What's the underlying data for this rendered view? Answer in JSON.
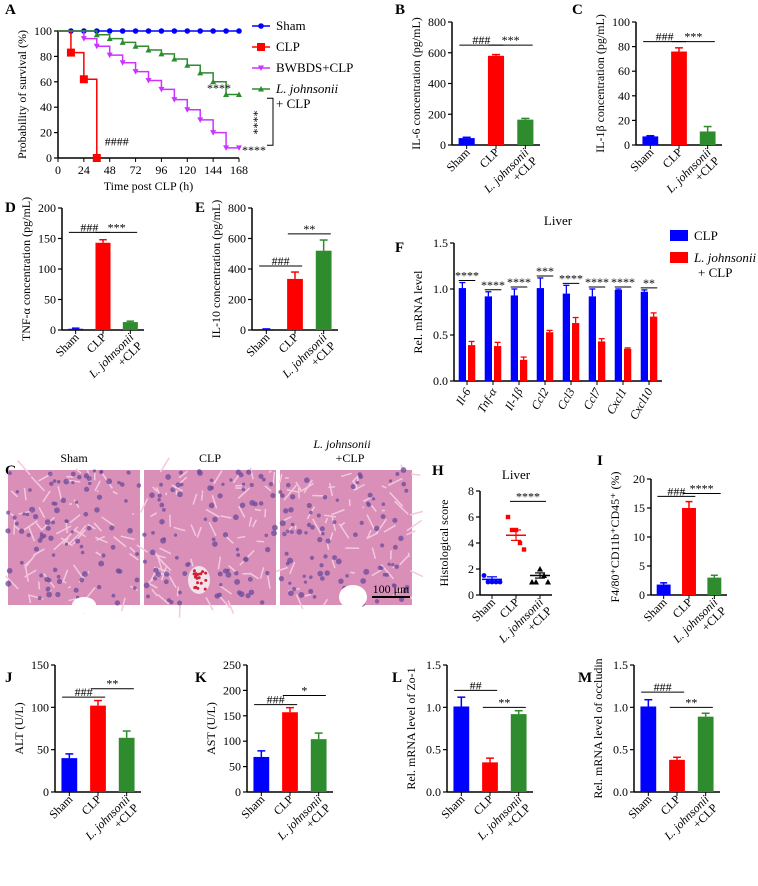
{
  "colors": {
    "sham": "#0000ff",
    "clp": "#ff0000",
    "bwbds": "#cc33ff",
    "lj": "#2e8b2e",
    "f_clp": "#0000ff",
    "f_lj": "#ff0000"
  },
  "chart_data": [
    {
      "id": "A",
      "type": "line",
      "title": "",
      "xlabel": "Time post CLP (h)",
      "ylabel": "Probability of survival (%)",
      "xlim": [
        0,
        168
      ],
      "ylim": [
        0,
        100
      ],
      "xticks": [
        0,
        24,
        48,
        72,
        96,
        120,
        144,
        168
      ],
      "yticks": [
        0,
        20,
        40,
        60,
        80,
        100
      ],
      "series": [
        {
          "name": "Sham",
          "italic": "",
          "color_key": "sham",
          "marker": "circle",
          "x": [
            0,
            12,
            24,
            36,
            48,
            60,
            72,
            84,
            96,
            108,
            120,
            132,
            144,
            156,
            168
          ],
          "y": [
            100,
            100,
            100,
            100,
            100,
            100,
            100,
            100,
            100,
            100,
            100,
            100,
            100,
            100,
            100
          ]
        },
        {
          "name": "CLP",
          "italic": "",
          "color_key": "clp",
          "marker": "square",
          "x": [
            0,
            12,
            24,
            36
          ],
          "y": [
            100,
            83,
            62,
            0
          ]
        },
        {
          "name": "BWBDS+CLP",
          "italic": "",
          "color_key": "bwbds",
          "marker": "tri-down",
          "x": [
            0,
            24,
            36,
            48,
            60,
            72,
            84,
            96,
            108,
            120,
            132,
            144,
            156,
            168
          ],
          "y": [
            100,
            94,
            88,
            81,
            75,
            68,
            61,
            54,
            46,
            38,
            30,
            20,
            8,
            8
          ]
        },
        {
          "name": "+ CLP",
          "italic": "L. johnsonii",
          "color_key": "lj",
          "marker": "tri-up",
          "x": [
            0,
            36,
            48,
            60,
            72,
            84,
            96,
            108,
            120,
            132,
            144,
            156,
            168
          ],
          "y": [
            100,
            97,
            94,
            91,
            88,
            85,
            82,
            78,
            73,
            67,
            60,
            50,
            50
          ]
        }
      ],
      "annotations": {
        "clp": "####",
        "lj": "****",
        "bwbds": "****",
        "bracket": "****"
      },
      "legend": "right"
    },
    {
      "id": "B",
      "type": "bar",
      "ylabel": "IL-6 concentration (pg/mL)",
      "ylim": [
        0,
        800
      ],
      "yticks": [
        0,
        200,
        400,
        600,
        800
      ],
      "categories": [
        "Sham",
        "CLP",
        "L. johnsonii|+CLP"
      ],
      "values": [
        45,
        580,
        165
      ],
      "errors": [
        5,
        8,
        8
      ],
      "sig": [
        {
          "text": "###",
          "from": 0,
          "to": 1,
          "y": 650
        },
        {
          "text": "***",
          "from": 1,
          "to": 2,
          "y": 650
        }
      ]
    },
    {
      "id": "C",
      "type": "bar",
      "ylabel": "IL-1β concentration (pg/mL)",
      "ylim": [
        0,
        100
      ],
      "yticks": [
        0,
        20,
        40,
        60,
        80,
        100
      ],
      "categories": [
        "Sham",
        "CLP",
        "L. johnsonii|+CLP"
      ],
      "values": [
        7,
        76,
        11
      ],
      "errors": [
        0.5,
        3,
        4
      ],
      "sig": [
        {
          "text": "###",
          "from": 0,
          "to": 1,
          "y": 84
        },
        {
          "text": "***",
          "from": 1,
          "to": 2,
          "y": 84
        }
      ]
    },
    {
      "id": "D",
      "type": "bar",
      "ylabel": "TNF-α concentration (pg/mL)",
      "ylim": [
        0,
        200
      ],
      "yticks": [
        0,
        50,
        100,
        150,
        200
      ],
      "categories": [
        "Sham",
        "CLP",
        "L. johnsonii|+CLP"
      ],
      "values": [
        2,
        143,
        13
      ],
      "errors": [
        1,
        5,
        1.5
      ],
      "sig": [
        {
          "text": "###",
          "from": 0,
          "to": 1,
          "y": 160
        },
        {
          "text": "***",
          "from": 1,
          "to": 2,
          "y": 160
        }
      ]
    },
    {
      "id": "E",
      "type": "bar",
      "ylabel": "IL-10 concentration (pg/mL)",
      "ylim": [
        0,
        800
      ],
      "yticks": [
        0,
        200,
        400,
        600,
        800
      ],
      "categories": [
        "Sham",
        "CLP",
        "L. johnsonii|+CLP"
      ],
      "values": [
        5,
        335,
        520
      ],
      "errors": [
        2,
        45,
        70
      ],
      "sig": [
        {
          "text": "###",
          "from": 0,
          "to": 1,
          "y": 420
        },
        {
          "text": "**",
          "from": 1,
          "to": 2,
          "y": 630
        }
      ]
    },
    {
      "id": "F",
      "type": "grouped-bar",
      "title": "Liver",
      "ylabel": "Rel. mRNA level",
      "ylim": [
        0,
        1.5
      ],
      "yticks": [
        0,
        0.5,
        1.0,
        1.5
      ],
      "categories": [
        "Il-6",
        "Tnf-α",
        "Il-1β",
        "Ccl2",
        "Ccl3",
        "Ccl7",
        "Cxcl1",
        "Cxcl10"
      ],
      "series": [
        {
          "name": "CLP",
          "italic": "",
          "color_key": "f_clp",
          "values": [
            1.01,
            0.92,
            0.93,
            1.01,
            0.95,
            0.92,
            0.99,
            0.97
          ],
          "errors": [
            0.06,
            0.05,
            0.07,
            0.11,
            0.09,
            0.08,
            0.01,
            0.02
          ]
        },
        {
          "name": "+ CLP",
          "italic": "L. johnsonii",
          "color_key": "f_lj",
          "values": [
            0.39,
            0.38,
            0.23,
            0.53,
            0.63,
            0.43,
            0.35,
            0.7
          ],
          "errors": [
            0.04,
            0.04,
            0.03,
            0.02,
            0.06,
            0.03,
            0.01,
            0.04
          ]
        }
      ],
      "sig": [
        "****",
        "****",
        "****",
        "***",
        "****",
        "****",
        "****",
        "**"
      ],
      "legend": "top-right"
    },
    {
      "id": "H",
      "type": "scatter",
      "title": "Liver",
      "ylabel": "Histological score",
      "ylim": [
        0,
        8
      ],
      "yticks": [
        0,
        2,
        4,
        6,
        8
      ],
      "categories": [
        "Sham",
        "CLP",
        "L. johnsonii|+CLP"
      ],
      "points": [
        [
          1.5,
          1,
          1,
          1,
          1
        ],
        [
          6,
          5,
          5,
          4,
          3.5
        ],
        [
          1,
          1,
          2,
          1.5,
          1
        ]
      ],
      "means": [
        1.2,
        4.6,
        1.5
      ],
      "sems": [
        0.2,
        0.4,
        0.2
      ],
      "sig": [
        {
          "text": "****",
          "from": 1,
          "to": 2,
          "y": 7.2
        }
      ]
    },
    {
      "id": "I",
      "type": "bar",
      "ylabel": "F4/80⁺CD11b⁺CD45⁺ (%)",
      "ylim": [
        0,
        20
      ],
      "yticks": [
        0,
        5,
        10,
        15,
        20
      ],
      "categories": [
        "Sham",
        "CLP",
        "L. johnsonii|+CLP"
      ],
      "values": [
        1.8,
        15,
        3
      ],
      "errors": [
        0.3,
        1.1,
        0.4
      ],
      "sig": [
        {
          "text": "###",
          "from": 0,
          "to": 1,
          "y": 17
        },
        {
          "text": "****",
          "from": 1,
          "to": 2,
          "y": 17.5
        }
      ]
    },
    {
      "id": "J",
      "type": "bar",
      "ylabel": "ALT (U/L)",
      "ylim": [
        0,
        150
      ],
      "yticks": [
        0,
        50,
        100,
        150
      ],
      "categories": [
        "Sham",
        "CLP",
        "L. johnsonii|+CLP"
      ],
      "values": [
        40,
        102,
        64
      ],
      "errors": [
        5,
        6,
        8
      ],
      "sig": [
        {
          "text": "###",
          "from": 0,
          "to": 1,
          "y": 112
        },
        {
          "text": "**",
          "from": 1,
          "to": 2,
          "y": 122
        }
      ]
    },
    {
      "id": "K",
      "type": "bar",
      "ylabel": "AST (U/L)",
      "ylim": [
        0,
        250
      ],
      "yticks": [
        0,
        50,
        100,
        150,
        200,
        250
      ],
      "categories": [
        "Sham",
        "CLP",
        "L. johnsonii|+CLP"
      ],
      "values": [
        69,
        157,
        104
      ],
      "errors": [
        12,
        9,
        12
      ],
      "sig": [
        {
          "text": "###",
          "from": 0,
          "to": 1,
          "y": 172
        },
        {
          "text": "*",
          "from": 1,
          "to": 2,
          "y": 190
        }
      ]
    },
    {
      "id": "L",
      "type": "bar",
      "ylabel": "Rel. mRNA level of Zo-1",
      "ylim": [
        0,
        1.5
      ],
      "yticks": [
        0,
        0.5,
        1.0,
        1.5
      ],
      "categories": [
        "Sham",
        "CLP",
        "L. johnsonii|+CLP"
      ],
      "values": [
        1.01,
        0.35,
        0.92
      ],
      "errors": [
        0.11,
        0.05,
        0.04
      ],
      "sig": [
        {
          "text": "##",
          "from": 0,
          "to": 1,
          "y": 1.2
        },
        {
          "text": "**",
          "from": 1,
          "to": 2,
          "y": 1.0
        }
      ]
    },
    {
      "id": "M",
      "type": "bar",
      "ylabel": "Rel. mRNA level of occludin",
      "ylim": [
        0,
        1.5
      ],
      "yticks": [
        0,
        0.5,
        1.0,
        1.5
      ],
      "categories": [
        "Sham",
        "CLP",
        "L. johnsonii|+CLP"
      ],
      "values": [
        1.01,
        0.38,
        0.89
      ],
      "errors": [
        0.08,
        0.03,
        0.04
      ],
      "sig": [
        {
          "text": "###",
          "from": 0,
          "to": 1,
          "y": 1.18
        },
        {
          "text": "**",
          "from": 1,
          "to": 2,
          "y": 1.0
        }
      ]
    }
  ],
  "histology": {
    "panel": "G",
    "labels": [
      "Sham",
      "CLP",
      "L. johnsonii|+CLP"
    ],
    "scale_bar": "100 μm"
  }
}
